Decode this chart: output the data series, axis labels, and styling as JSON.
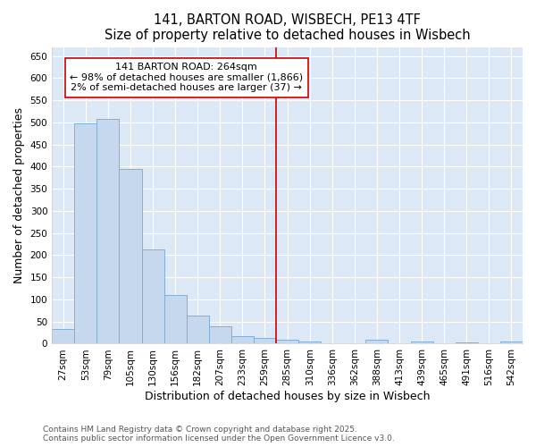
{
  "title_line1": "141, BARTON ROAD, WISBECH, PE13 4TF",
  "title_line2": "Size of property relative to detached houses in Wisbech",
  "xlabel": "Distribution of detached houses by size in Wisbech",
  "ylabel": "Number of detached properties",
  "categories": [
    "27sqm",
    "53sqm",
    "79sqm",
    "105sqm",
    "130sqm",
    "156sqm",
    "182sqm",
    "207sqm",
    "233sqm",
    "259sqm",
    "285sqm",
    "310sqm",
    "336sqm",
    "362sqm",
    "388sqm",
    "413sqm",
    "439sqm",
    "465sqm",
    "491sqm",
    "516sqm",
    "542sqm"
  ],
  "values": [
    33,
    498,
    508,
    395,
    212,
    110,
    63,
    40,
    18,
    13,
    9,
    5,
    0,
    0,
    8,
    0,
    5,
    0,
    3,
    0,
    5
  ],
  "bar_color": "#c5d8ee",
  "bar_edgecolor": "#82afd3",
  "vline_x_idx": 9,
  "vline_color": "#cc0000",
  "annotation_text": "141 BARTON ROAD: 264sqm\n← 98% of detached houses are smaller (1,866)\n2% of semi-detached houses are larger (37) →",
  "annotation_box_color": "#ffffff",
  "annotation_box_edgecolor": "#cc0000",
  "ylim": [
    0,
    670
  ],
  "yticks": [
    0,
    50,
    100,
    150,
    200,
    250,
    300,
    350,
    400,
    450,
    500,
    550,
    600,
    650
  ],
  "fig_bg_color": "#ffffff",
  "plot_bg_color": "#dce8f5",
  "grid_color": "#ffffff",
  "footer_line1": "Contains HM Land Registry data © Crown copyright and database right 2025.",
  "footer_line2": "Contains public sector information licensed under the Open Government Licence v3.0.",
  "title_fontsize": 10.5,
  "tick_fontsize": 7.5,
  "label_fontsize": 9,
  "annotation_fontsize": 8,
  "footer_fontsize": 6.5
}
